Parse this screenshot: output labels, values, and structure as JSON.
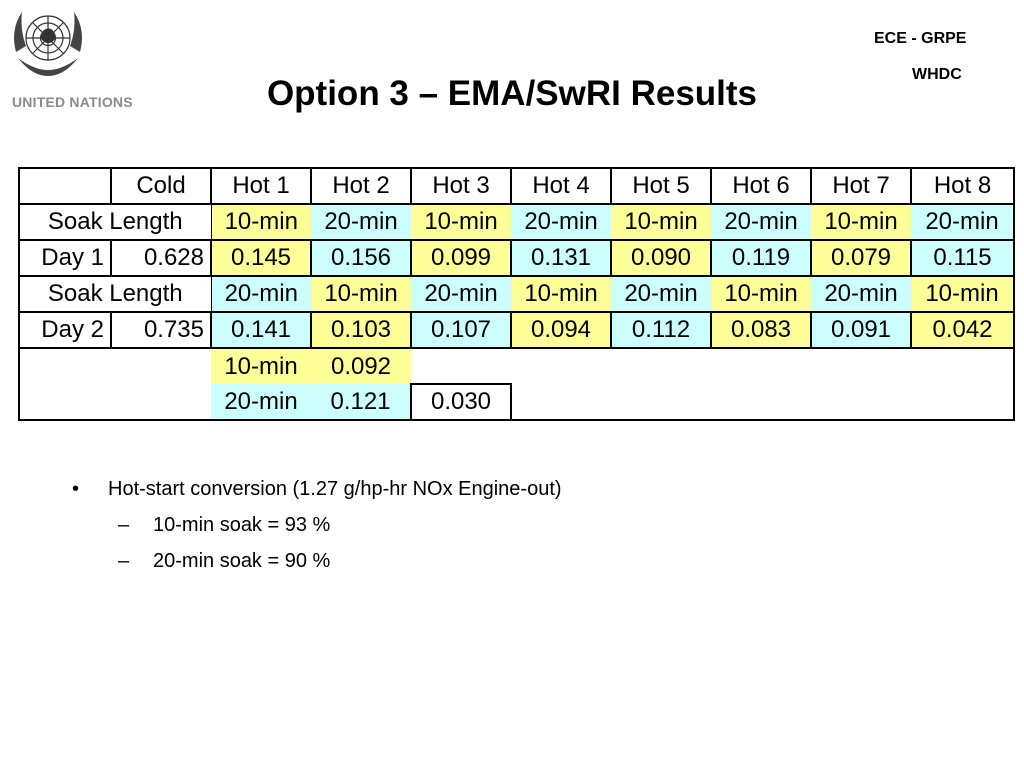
{
  "header": {
    "org_name": "UNITED NATIONS",
    "logo_icon": "un-emblem-icon",
    "title": "Option 3 – EMA/SwRI Results",
    "right_line1": "ECE - GRPE",
    "right_line2": "WHDC"
  },
  "colors": {
    "ten_min": "#ffff99",
    "twenty_min": "#ccffff",
    "org_name": "#8a8a8a"
  },
  "table": {
    "columns": [
      "",
      "Cold",
      "Hot 1",
      "Hot 2",
      "Hot 3",
      "Hot 4",
      "Hot 5",
      "Hot 6",
      "Hot 7",
      "Hot 8"
    ],
    "day1": {
      "soak_label": "Soak Length",
      "soaks": [
        "10-min",
        "20-min",
        "10-min",
        "20-min",
        "10-min",
        "20-min",
        "10-min",
        "20-min"
      ],
      "label": "Day 1",
      "cold": "0.628",
      "values": [
        "0.145",
        "0.156",
        "0.099",
        "0.131",
        "0.090",
        "0.119",
        "0.079",
        "0.115"
      ]
    },
    "day2": {
      "soak_label": "Soak Length",
      "soaks": [
        "20-min",
        "10-min",
        "20-min",
        "10-min",
        "20-min",
        "10-min",
        "20-min",
        "10-min"
      ],
      "label": "Day 2",
      "cold": "0.735",
      "values": [
        "0.141",
        "0.103",
        "0.107",
        "0.094",
        "0.112",
        "0.083",
        "0.091",
        "0.042"
      ]
    },
    "summary": {
      "ten_label": "10-min",
      "ten_value": "0.092",
      "twenty_label": "20-min",
      "twenty_value": "0.121",
      "diff_value": "0.030"
    }
  },
  "bullets": {
    "main": "Hot-start conversion (1.27 g/hp-hr NOx Engine-out)",
    "sub1": "10-min soak = 93 %",
    "sub2": "20-min soak = 90 %",
    "bullet_glyph": "•",
    "dash_glyph": "–"
  }
}
